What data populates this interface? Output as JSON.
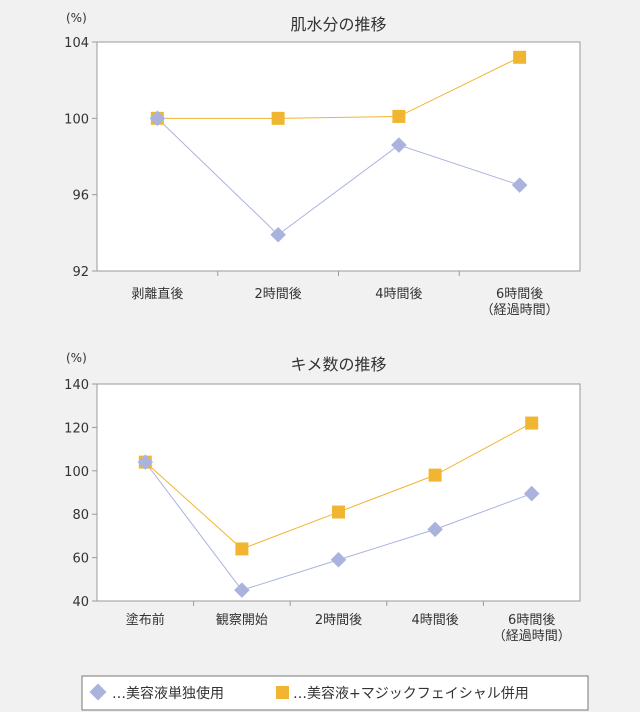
{
  "chart_data": [
    {
      "type": "line",
      "title": "肌水分の推移",
      "unit": "(%)",
      "categories": [
        [
          "剥離直後"
        ],
        [
          "2時間後"
        ],
        [
          "4時間後"
        ],
        [
          "6時間後",
          "（経過時間）"
        ]
      ],
      "ylim": [
        92,
        104
      ],
      "yticks": [
        92,
        96,
        100,
        104
      ],
      "grid": false,
      "series": [
        {
          "name": "美容液単独使用",
          "marker": "diamond",
          "color": "#a9b3de",
          "values": [
            100,
            93.9,
            98.6,
            96.5
          ]
        },
        {
          "name": "美容液+マジックフェイシャル併用",
          "marker": "square",
          "color": "#f0b631",
          "values": [
            100,
            100,
            100.1,
            103.2
          ]
        }
      ]
    },
    {
      "type": "line",
      "title": "キメ数の推移",
      "unit": "(%)",
      "categories": [
        [
          "塗布前"
        ],
        [
          "観察開始"
        ],
        [
          "2時間後"
        ],
        [
          "4時間後"
        ],
        [
          "6時間後",
          "（経過時間）"
        ]
      ],
      "ylim": [
        40,
        140
      ],
      "yticks": [
        40,
        60,
        80,
        100,
        120,
        140
      ],
      "grid": false,
      "series": [
        {
          "name": "美容液単独使用",
          "marker": "diamond",
          "color": "#a9b3de",
          "values": [
            104,
            45,
            59,
            73,
            89.5
          ]
        },
        {
          "name": "美容液+マジックフェイシャル併用",
          "marker": "square",
          "color": "#f0b631",
          "values": [
            104,
            64,
            81,
            98,
            122
          ]
        }
      ]
    }
  ],
  "legend": {
    "placement": "bottom",
    "items": [
      {
        "label": "…美容液単独使用",
        "marker": "diamond-icon",
        "color": "#a9b3de"
      },
      {
        "label": "…美容液+マジックフェイシャル併用",
        "marker": "square-icon",
        "color": "#f0b631"
      }
    ]
  }
}
